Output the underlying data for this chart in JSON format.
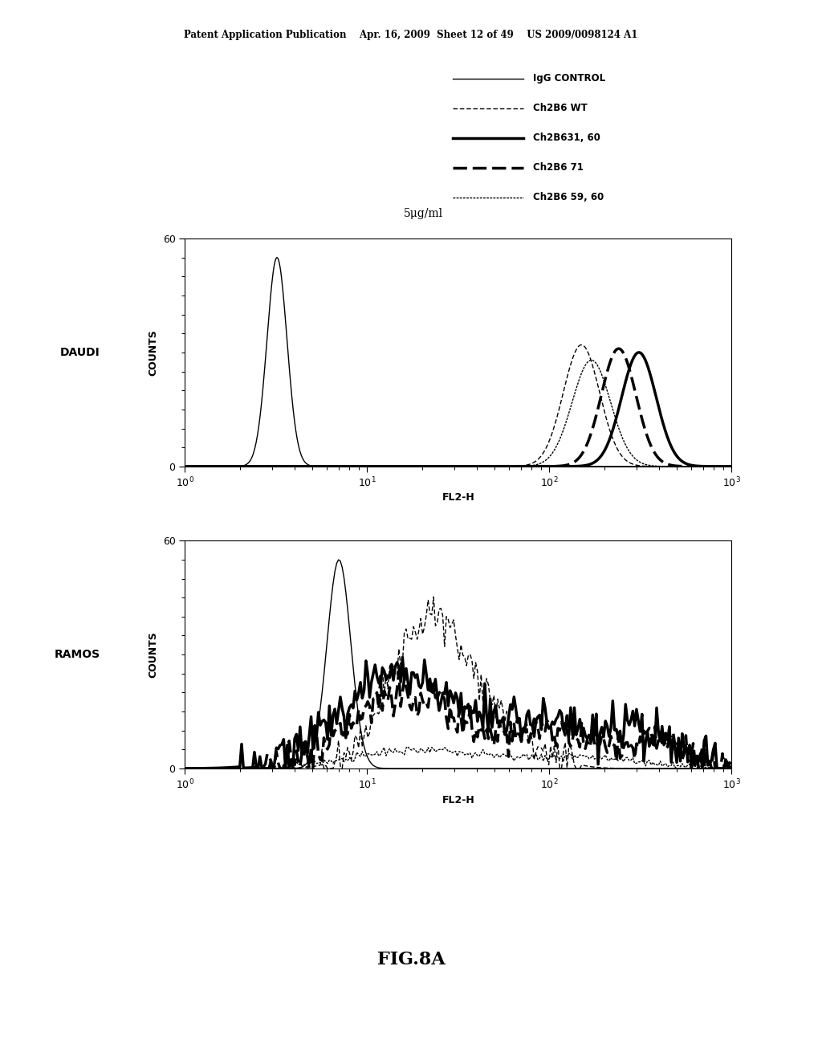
{
  "title_header": "Patent Application Publication    Apr. 16, 2009  Sheet 12 of 49    US 2009/0098124 A1",
  "figure_label": "FIG.8A",
  "concentration_label": "5μg/ml",
  "legend_entries": [
    {
      "label": "IgG CONTROL",
      "lw": 1.0,
      "dashes": null
    },
    {
      "label": "Ch2B6 WT",
      "lw": 1.0,
      "dashes": [
        4,
        2
      ]
    },
    {
      "label": "Ch2B631, 60",
      "lw": 2.5,
      "dashes": null
    },
    {
      "label": "Ch2B6 71",
      "lw": 2.5,
      "dashes": [
        5,
        2
      ]
    },
    {
      "label": "Ch2B6 59, 60",
      "lw": 1.0,
      "dashes": [
        2,
        1
      ]
    }
  ],
  "background_color": "#ffffff"
}
